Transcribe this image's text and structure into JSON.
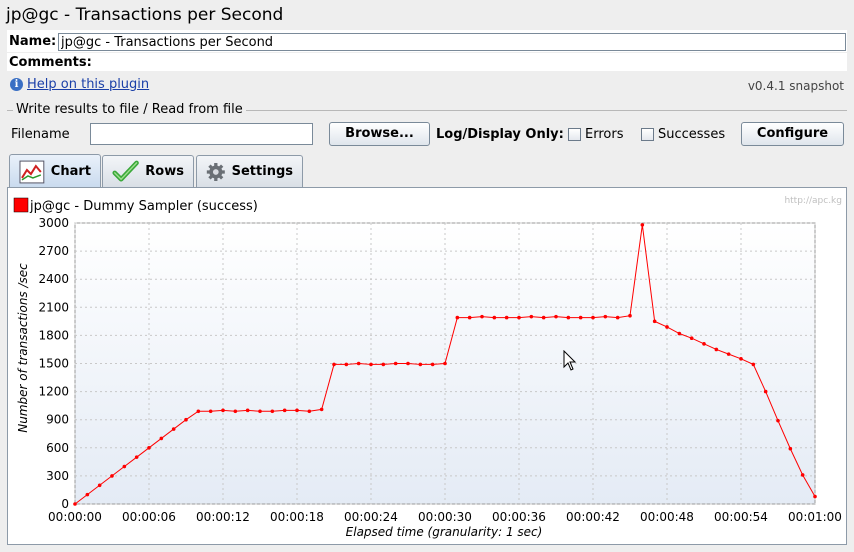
{
  "window": {
    "title": "jp@gc - Transactions per Second"
  },
  "name_field": {
    "label": "Name:",
    "value": "jp@gc - Transactions per Second"
  },
  "comments_field": {
    "label": "Comments:"
  },
  "help": {
    "link_text": "Help on this plugin",
    "version": "v0.4.1 snapshot",
    "icon": "info-icon"
  },
  "file_panel": {
    "title": "Write results to file / Read from file",
    "filename_label": "Filename",
    "filename_value": "",
    "browse_label": "Browse...",
    "log_display_label": "Log/Display Only:",
    "errors_label": "Errors",
    "successes_label": "Successes",
    "configure_label": "Configure"
  },
  "tabs": [
    {
      "label": "Chart",
      "icon": "chart-icon",
      "active": true
    },
    {
      "label": "Rows",
      "icon": "checkmark-icon",
      "active": false
    },
    {
      "label": "Settings",
      "icon": "gear-icon",
      "active": false
    }
  ],
  "chart_data": {
    "type": "line",
    "watermark": "http://apc.kg",
    "ylabel": "Number of transactions /sec",
    "xlabel": "Elapsed time (granularity: 1 sec)",
    "ylim": [
      0,
      3000
    ],
    "yticks": [
      "0",
      "300",
      "600",
      "900",
      "1200",
      "1500",
      "1800",
      "2100",
      "2400",
      "2700",
      "3000"
    ],
    "xticks": [
      "00:00:00",
      "00:00:06",
      "00:00:12",
      "00:00:18",
      "00:00:24",
      "00:00:30",
      "00:00:36",
      "00:00:42",
      "00:00:48",
      "00:00:54",
      "00:01:00"
    ],
    "xlim": [
      0,
      60
    ],
    "grid": true,
    "series": [
      {
        "name": "jp@gc - Dummy Sampler (success)",
        "color": "#ff0000",
        "x": [
          0,
          1,
          2,
          3,
          4,
          5,
          6,
          7,
          8,
          9,
          10,
          11,
          12,
          13,
          14,
          15,
          16,
          17,
          18,
          19,
          20,
          21,
          22,
          23,
          24,
          25,
          26,
          27,
          28,
          29,
          30,
          31,
          32,
          33,
          34,
          35,
          36,
          37,
          38,
          39,
          40,
          41,
          42,
          43,
          44,
          45,
          46,
          47,
          48,
          49,
          50,
          51,
          52,
          53,
          54,
          55,
          56,
          57,
          58,
          59,
          60
        ],
        "values": [
          0,
          100,
          200,
          300,
          400,
          500,
          600,
          700,
          800,
          900,
          990,
          990,
          1000,
          990,
          1000,
          990,
          990,
          1000,
          1000,
          990,
          1010,
          1490,
          1490,
          1500,
          1490,
          1490,
          1500,
          1500,
          1490,
          1490,
          1500,
          1990,
          1990,
          2000,
          1990,
          1990,
          1990,
          2000,
          1990,
          2000,
          1990,
          1990,
          1990,
          2000,
          1990,
          2010,
          2980,
          1950,
          1890,
          1820,
          1770,
          1710,
          1650,
          1600,
          1550,
          1490,
          1200,
          890,
          590,
          310,
          80
        ]
      }
    ]
  }
}
